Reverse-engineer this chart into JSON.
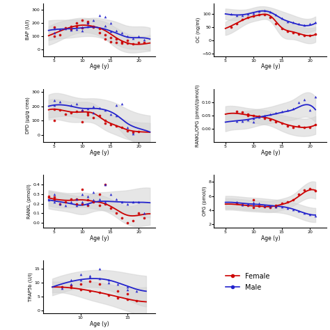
{
  "panels": [
    {
      "label": "BAP",
      "ylabel": "BAP (U/l)",
      "col": 0,
      "row": 0,
      "ylim": [
        -50,
        350
      ],
      "yticks": [
        0,
        100,
        200,
        300
      ],
      "xlim": [
        3,
        23
      ],
      "xticks": [
        5,
        10,
        15,
        20
      ],
      "female_scatter_x": [
        5,
        5,
        6,
        7,
        8,
        8,
        9,
        9,
        10,
        10,
        11,
        11,
        12,
        12,
        13,
        13,
        14,
        14,
        15,
        15,
        16,
        16,
        17,
        17,
        18,
        18,
        19,
        20,
        21
      ],
      "female_scatter_y": [
        100,
        170,
        110,
        165,
        175,
        155,
        175,
        200,
        165,
        220,
        200,
        210,
        170,
        175,
        130,
        160,
        110,
        80,
        60,
        90,
        55,
        80,
        50,
        60,
        50,
        70,
        45,
        55,
        55
      ],
      "male_scatter_x": [
        5,
        5,
        6,
        7,
        8,
        9,
        10,
        10,
        11,
        11,
        12,
        12,
        13,
        14,
        14,
        15,
        15,
        16,
        17,
        18,
        19,
        20,
        21
      ],
      "male_scatter_y": [
        160,
        130,
        155,
        160,
        150,
        155,
        170,
        145,
        175,
        200,
        220,
        175,
        260,
        180,
        250,
        140,
        200,
        145,
        130,
        100,
        85,
        100,
        75
      ],
      "female_curve_x": [
        4,
        6,
        8,
        10,
        12,
        14,
        16,
        18,
        20,
        22
      ],
      "female_curve_y": [
        105,
        140,
        170,
        185,
        175,
        145,
        90,
        50,
        40,
        50
      ],
      "male_curve_x": [
        4,
        6,
        8,
        10,
        12,
        14,
        16,
        18,
        20,
        22
      ],
      "male_curve_y": [
        145,
        155,
        158,
        165,
        170,
        155,
        125,
        95,
        90,
        80
      ],
      "female_ci_upper": [
        175,
        210,
        230,
        240,
        230,
        210,
        165,
        120,
        100,
        110
      ],
      "female_ci_lower": [
        35,
        70,
        110,
        130,
        120,
        80,
        15,
        -20,
        -20,
        -10
      ],
      "male_ci_upper": [
        220,
        225,
        225,
        230,
        240,
        230,
        210,
        180,
        175,
        165
      ],
      "male_ci_lower": [
        70,
        85,
        91,
        100,
        100,
        80,
        40,
        10,
        5,
        -5
      ]
    },
    {
      "label": "OC",
      "ylabel": "OC (ng/ml)",
      "col": 1,
      "row": 0,
      "ylim": [
        -60,
        140
      ],
      "yticks": [
        -50,
        0,
        50,
        100
      ],
      "xlim": [
        3,
        23
      ],
      "xticks": [
        5,
        10,
        15,
        20
      ],
      "female_scatter_x": [
        6,
        7,
        8,
        9,
        10,
        11,
        12,
        13,
        14,
        15,
        16,
        17,
        18,
        19,
        20,
        21
      ],
      "female_scatter_y": [
        50,
        62,
        78,
        87,
        91,
        96,
        97,
        86,
        64,
        44,
        34,
        28,
        23,
        18,
        18,
        23
      ],
      "male_scatter_x": [
        6,
        7,
        8,
        9,
        10,
        11,
        12,
        13,
        14,
        15,
        16,
        17,
        18,
        19,
        20,
        21
      ],
      "male_scatter_y": [
        100,
        95,
        95,
        100,
        102,
        110,
        112,
        107,
        97,
        83,
        72,
        68,
        62,
        58,
        62,
        68
      ],
      "female_curve_x": [
        5,
        7,
        9,
        11,
        13,
        15,
        17,
        19,
        21
      ],
      "female_curve_y": [
        45,
        65,
        85,
        96,
        92,
        48,
        32,
        20,
        22
      ],
      "male_curve_x": [
        5,
        7,
        9,
        11,
        13,
        15,
        17,
        19,
        21
      ],
      "male_curve_y": [
        100,
        96,
        100,
        110,
        106,
        82,
        66,
        56,
        65
      ],
      "female_ci_upper": [
        70,
        90,
        105,
        115,
        112,
        80,
        60,
        48,
        50
      ],
      "female_ci_lower": [
        20,
        40,
        65,
        77,
        72,
        16,
        4,
        -8,
        -6
      ],
      "male_ci_upper": [
        120,
        116,
        118,
        128,
        124,
        110,
        95,
        82,
        90
      ],
      "male_ci_lower": [
        80,
        76,
        82,
        92,
        88,
        54,
        37,
        30,
        40
      ]
    },
    {
      "label": "DPD",
      "ylabel": "DPD (μg/g crea)",
      "col": 0,
      "row": 1,
      "ylim": [
        -50,
        320
      ],
      "yticks": [
        0,
        100,
        200,
        300
      ],
      "xlim": [
        3,
        23
      ],
      "xticks": [
        5,
        10,
        15,
        20
      ],
      "female_scatter_x": [
        5,
        5,
        6,
        7,
        8,
        9,
        10,
        10,
        11,
        11,
        12,
        13,
        14,
        14,
        15,
        16,
        17,
        18,
        19,
        20
      ],
      "female_scatter_y": [
        180,
        100,
        175,
        145,
        155,
        165,
        170,
        90,
        140,
        155,
        120,
        135,
        80,
        100,
        70,
        60,
        50,
        30,
        20,
        25
      ],
      "male_scatter_x": [
        5,
        5,
        6,
        8,
        9,
        10,
        11,
        12,
        12,
        13,
        14,
        15,
        16,
        16,
        17,
        18,
        19
      ],
      "male_scatter_y": [
        240,
        210,
        230,
        210,
        215,
        175,
        185,
        200,
        155,
        190,
        175,
        145,
        135,
        210,
        215,
        50,
        10
      ],
      "female_curve_x": [
        4,
        6,
        8,
        10,
        12,
        14,
        16,
        18,
        20,
        22
      ],
      "female_curve_y": [
        175,
        175,
        160,
        160,
        150,
        100,
        65,
        35,
        22,
        18
      ],
      "male_curve_x": [
        4,
        6,
        8,
        10,
        12,
        14,
        16,
        18,
        20,
        22
      ],
      "male_curve_y": [
        200,
        210,
        200,
        185,
        185,
        175,
        140,
        80,
        45,
        20
      ],
      "female_ci_upper": [
        245,
        245,
        230,
        230,
        218,
        165,
        130,
        100,
        87,
        83
      ],
      "female_ci_lower": [
        105,
        105,
        90,
        90,
        82,
        35,
        0,
        -30,
        -43,
        -47
      ],
      "male_ci_upper": [
        280,
        290,
        270,
        255,
        255,
        245,
        220,
        180,
        150,
        135
      ],
      "male_ci_lower": [
        120,
        130,
        130,
        115,
        115,
        105,
        60,
        -20,
        -60,
        -95
      ]
    },
    {
      "label": "RANKL/OPG",
      "ylabel": "RANKL/OPG (pmol/l/pmol/l)",
      "col": 1,
      "row": 1,
      "ylim": [
        -0.05,
        0.15
      ],
      "yticks": [
        0.0,
        0.05,
        0.1
      ],
      "xlim": [
        3,
        23
      ],
      "xticks": [
        5,
        10,
        15,
        20
      ],
      "female_scatter_x": [
        7,
        8,
        9,
        9,
        10,
        11,
        12,
        13,
        14,
        15,
        16,
        17,
        18,
        19,
        20,
        21
      ],
      "female_scatter_y": [
        0.065,
        0.062,
        0.055,
        0.05,
        0.05,
        0.048,
        0.04,
        0.035,
        0.025,
        0.02,
        0.01,
        0.005,
        0.01,
        0.005,
        0.005,
        0.015
      ],
      "male_scatter_x": [
        7,
        8,
        9,
        10,
        10,
        11,
        12,
        13,
        14,
        15,
        16,
        17,
        18,
        19,
        20,
        21
      ],
      "male_scatter_y": [
        0.03,
        0.03,
        0.035,
        0.04,
        0.025,
        0.045,
        0.05,
        0.055,
        0.06,
        0.065,
        0.07,
        0.075,
        0.1,
        0.11,
        0.07,
        0.12
      ],
      "female_curve_x": [
        5,
        7,
        9,
        11,
        13,
        15,
        17,
        19,
        21
      ],
      "female_curve_y": [
        0.055,
        0.058,
        0.052,
        0.046,
        0.038,
        0.022,
        0.01,
        0.005,
        0.014
      ],
      "male_curve_x": [
        5,
        7,
        9,
        11,
        13,
        15,
        17,
        19,
        21
      ],
      "male_curve_y": [
        0.025,
        0.03,
        0.035,
        0.044,
        0.052,
        0.062,
        0.072,
        0.09,
        0.072
      ],
      "female_ci_upper": [
        0.085,
        0.085,
        0.078,
        0.073,
        0.065,
        0.052,
        0.043,
        0.038,
        0.048
      ],
      "female_ci_lower": [
        0.025,
        0.031,
        0.026,
        0.019,
        0.011,
        -0.008,
        -0.023,
        -0.028,
        -0.02
      ],
      "male_ci_upper": [
        0.06,
        0.062,
        0.068,
        0.075,
        0.083,
        0.095,
        0.11,
        0.135,
        0.12
      ],
      "male_ci_lower": [
        -0.01,
        -0.002,
        0.002,
        0.013,
        0.021,
        0.029,
        0.034,
        0.045,
        0.024
      ]
    },
    {
      "label": "RANKL",
      "ylabel": "RANKL (pmol/l)",
      "col": 0,
      "row": 2,
      "ylim": [
        -0.05,
        0.5
      ],
      "yticks": [
        0.0,
        0.1,
        0.2,
        0.3,
        0.4
      ],
      "xlim": [
        3,
        23
      ],
      "xticks": [
        5,
        10,
        15,
        20
      ],
      "female_scatter_x": [
        4,
        5,
        5,
        6,
        7,
        8,
        9,
        9,
        10,
        10,
        11,
        11,
        12,
        13,
        13,
        14,
        14,
        15,
        16,
        17,
        18,
        19,
        20,
        21
      ],
      "female_scatter_y": [
        0.28,
        0.27,
        0.25,
        0.2,
        0.22,
        0.25,
        0.25,
        0.2,
        0.35,
        0.2,
        0.18,
        0.24,
        0.22,
        0.18,
        0.3,
        0.2,
        0.4,
        0.15,
        0.1,
        0.05,
        0.0,
        0.02,
        0.1,
        0.05
      ],
      "male_scatter_x": [
        4,
        5,
        5,
        6,
        7,
        8,
        9,
        9,
        10,
        10,
        11,
        11,
        12,
        12,
        13,
        14,
        14,
        15,
        16,
        17,
        18,
        19,
        20,
        21
      ],
      "male_scatter_y": [
        0.24,
        0.22,
        0.3,
        0.2,
        0.18,
        0.22,
        0.25,
        0.18,
        0.3,
        0.22,
        0.28,
        0.2,
        0.24,
        0.32,
        0.25,
        0.22,
        0.4,
        0.3,
        0.25,
        0.22,
        0.2,
        0.22,
        0.22,
        0.1
      ],
      "female_curve_x": [
        4,
        6,
        8,
        10,
        12,
        14,
        16,
        18,
        20,
        22
      ],
      "female_curve_y": [
        0.26,
        0.24,
        0.235,
        0.24,
        0.225,
        0.2,
        0.14,
        0.08,
        0.08,
        0.095
      ],
      "male_curve_x": [
        4,
        6,
        8,
        10,
        12,
        14,
        16,
        18,
        20,
        22
      ],
      "male_curve_y": [
        0.24,
        0.22,
        0.2,
        0.185,
        0.215,
        0.225,
        0.22,
        0.215,
        0.215,
        0.21
      ],
      "female_ci_upper": [
        0.34,
        0.32,
        0.31,
        0.315,
        0.3,
        0.275,
        0.22,
        0.175,
        0.195,
        0.21
      ],
      "female_ci_lower": [
        0.18,
        0.16,
        0.16,
        0.165,
        0.15,
        0.125,
        0.06,
        -0.015,
        -0.035,
        -0.02
      ],
      "male_ci_upper": [
        0.33,
        0.31,
        0.29,
        0.28,
        0.31,
        0.32,
        0.33,
        0.34,
        0.36,
        0.365
      ],
      "male_ci_lower": [
        0.15,
        0.13,
        0.11,
        0.09,
        0.12,
        0.13,
        0.11,
        0.09,
        0.07,
        0.055
      ]
    },
    {
      "label": "OPG",
      "ylabel": "OPG (pmol/l)",
      "col": 1,
      "row": 2,
      "ylim": [
        1.5,
        9
      ],
      "yticks": [
        2,
        4,
        6,
        8
      ],
      "xlim": [
        3,
        23
      ],
      "xticks": [
        5,
        10,
        15,
        20
      ],
      "female_scatter_x": [
        7,
        8,
        9,
        10,
        10,
        11,
        12,
        13,
        14,
        14,
        15,
        16,
        17,
        18,
        19,
        20,
        21
      ],
      "female_scatter_y": [
        5.0,
        4.8,
        4.7,
        5.5,
        4.4,
        4.6,
        4.5,
        4.4,
        4.5,
        4.7,
        5.0,
        5.2,
        5.5,
        6.2,
        6.8,
        7.0,
        6.7
      ],
      "male_scatter_x": [
        7,
        8,
        9,
        10,
        10,
        11,
        12,
        13,
        14,
        15,
        16,
        17,
        18,
        19,
        20,
        21
      ],
      "male_scatter_y": [
        5.2,
        4.8,
        4.9,
        5.1,
        4.8,
        5.0,
        4.7,
        4.6,
        4.5,
        4.5,
        4.3,
        4.1,
        3.9,
        3.6,
        3.4,
        3.2
      ],
      "female_curve_x": [
        5,
        7,
        9,
        11,
        13,
        15,
        17,
        19,
        21
      ],
      "female_curve_y": [
        4.85,
        4.8,
        4.65,
        4.55,
        4.5,
        4.8,
        5.4,
        6.5,
        6.8
      ],
      "male_curve_x": [
        5,
        7,
        9,
        11,
        13,
        15,
        17,
        19,
        21
      ],
      "male_curve_y": [
        5.1,
        5.05,
        4.9,
        4.8,
        4.65,
        4.5,
        4.15,
        3.6,
        3.3
      ],
      "female_ci_upper": [
        5.65,
        5.6,
        5.45,
        5.35,
        5.3,
        5.6,
        6.2,
        7.5,
        8.0
      ],
      "female_ci_lower": [
        4.05,
        4.0,
        3.85,
        3.75,
        3.7,
        4.0,
        4.6,
        5.5,
        5.6
      ],
      "male_ci_upper": [
        6.0,
        5.95,
        5.8,
        5.7,
        5.55,
        5.4,
        5.1,
        4.6,
        4.3
      ],
      "male_ci_lower": [
        4.2,
        4.15,
        4.0,
        3.9,
        3.75,
        3.6,
        3.2,
        2.6,
        2.3
      ]
    },
    {
      "label": "TRAP5b",
      "ylabel": "TRAP5b (U/l)",
      "col": 0,
      "row": 3,
      "ylim": [
        -1,
        18
      ],
      "yticks": [
        0,
        5,
        10,
        15
      ],
      "xlim": [
        6,
        18
      ],
      "xticks": [
        10,
        15
      ],
      "female_scatter_x": [
        8,
        9,
        9,
        10,
        10,
        11,
        11,
        12,
        12,
        13,
        14,
        14,
        15,
        15,
        16
      ],
      "female_scatter_y": [
        8.5,
        8.2,
        9.0,
        7.5,
        9.5,
        7.0,
        10.5,
        6.5,
        9.5,
        5.5,
        4.5,
        7.0,
        4.0,
        6.0,
        3.5
      ],
      "male_scatter_x": [
        8,
        9,
        9,
        10,
        10,
        11,
        11,
        12,
        12,
        13,
        13,
        14,
        15,
        15,
        16
      ],
      "male_scatter_y": [
        8.0,
        11.0,
        9.5,
        11.0,
        13.0,
        12.0,
        12.5,
        11.5,
        15.0,
        11.0,
        10.0,
        9.5,
        8.5,
        7.5,
        7.0
      ],
      "female_curve_x": [
        7,
        9,
        11,
        13,
        15,
        17
      ],
      "female_curve_y": [
        8.5,
        8.2,
        7.2,
        5.8,
        4.2,
        3.2
      ],
      "male_curve_x": [
        7,
        9,
        11,
        13,
        15,
        17
      ],
      "male_curve_y": [
        8.5,
        10.5,
        11.5,
        11.0,
        8.8,
        7.0
      ],
      "female_ci_upper": [
        10.5,
        10.5,
        10.5,
        9.5,
        8.5,
        8.5
      ],
      "female_ci_lower": [
        6.5,
        5.9,
        3.9,
        2.1,
        -0.1,
        -2.1
      ],
      "male_ci_upper": [
        11.5,
        13.5,
        14.5,
        14.5,
        13.5,
        12.5
      ],
      "male_ci_lower": [
        5.5,
        7.5,
        8.5,
        7.5,
        4.1,
        1.5
      ]
    }
  ],
  "female_color": "#cc0000",
  "male_color": "#2222cc",
  "grid_rows": 4,
  "grid_cols": 2
}
